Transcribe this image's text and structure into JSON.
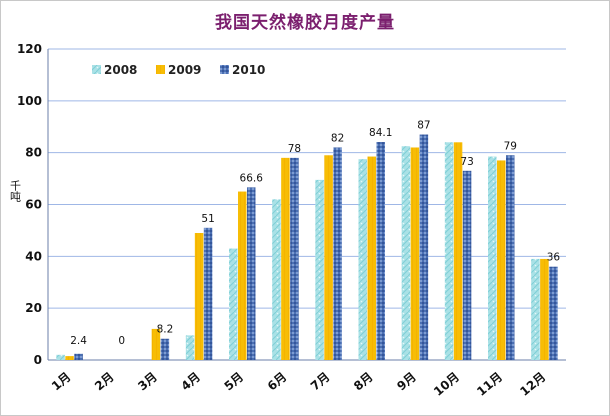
{
  "chart_data": {
    "type": "bar",
    "title": "我国天然橡胶月度产量",
    "ylabel": "千吨",
    "xlabel": "",
    "ylim": [
      0,
      120
    ],
    "yticks": [
      0,
      20,
      40,
      60,
      80,
      100,
      120
    ],
    "grid": true,
    "legend_position": "top-left",
    "categories": [
      "1月",
      "2月",
      "3月",
      "4月",
      "5月",
      "6月",
      "7月",
      "8月",
      "9月",
      "10月",
      "11月",
      "12月"
    ],
    "series": [
      {
        "name": "2008",
        "color": "#a9e1e6",
        "values": [
          2,
          0,
          0,
          9.5,
          43,
          62,
          69.5,
          77.5,
          82.5,
          84,
          78.5,
          39
        ]
      },
      {
        "name": "2009",
        "color": "#f7bd05",
        "values": [
          1.5,
          0,
          12,
          49,
          65,
          78,
          79,
          78.5,
          82,
          84,
          77,
          39
        ]
      },
      {
        "name": "2010",
        "color": "#4a6fb3",
        "values": [
          2.4,
          0,
          8.2,
          51,
          66.6,
          78,
          82,
          84.1,
          87,
          73,
          79,
          36
        ]
      }
    ],
    "data_labels": {
      "series": "2010",
      "values": [
        "2.4",
        "0",
        "8.2",
        "51",
        "66.6",
        "78",
        "82",
        "84.1",
        "87",
        "73",
        "79",
        "36"
      ]
    }
  }
}
